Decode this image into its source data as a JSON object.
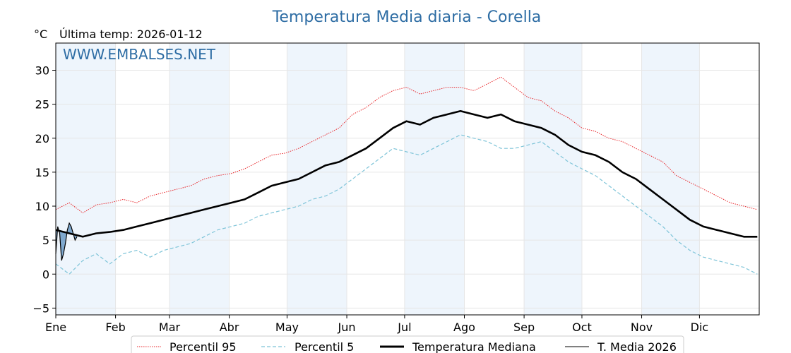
{
  "header": {
    "title": "Temperatura Media diaria - Corella",
    "unit": "°C",
    "last_temp": "Última temp: 2026-01-12",
    "watermark": "WWW.EMBALSES.NET"
  },
  "chart_data": {
    "type": "line",
    "title": "Temperatura Media diaria - Corella",
    "ylabel": "°C",
    "ylim": [
      -6,
      34
    ],
    "yticks": [
      -5,
      0,
      5,
      10,
      15,
      20,
      25,
      30
    ],
    "ytick_labels": [
      "−5",
      "0",
      "5",
      "10",
      "15",
      "20",
      "25",
      "30"
    ],
    "xlim": [
      0,
      365
    ],
    "months": [
      "Ene",
      "Feb",
      "Mar",
      "Abr",
      "May",
      "Jun",
      "Jul",
      "Ago",
      "Sep",
      "Oct",
      "Nov",
      "Dic"
    ],
    "month_starts": [
      0,
      31,
      59,
      90,
      120,
      151,
      181,
      212,
      243,
      273,
      304,
      334
    ],
    "grid": true,
    "alternate_month_shading": true,
    "legend_position": "bottom",
    "x_doy": [
      0,
      7,
      14,
      21,
      28,
      35,
      42,
      49,
      56,
      63,
      70,
      77,
      84,
      91,
      98,
      105,
      112,
      119,
      126,
      133,
      140,
      147,
      154,
      161,
      168,
      175,
      182,
      189,
      196,
      203,
      210,
      217,
      224,
      231,
      238,
      245,
      252,
      259,
      266,
      273,
      280,
      287,
      294,
      301,
      308,
      315,
      322,
      329,
      336,
      343,
      350,
      357,
      364
    ],
    "series": [
      {
        "name": "Percentil 95",
        "color": "#e8262a",
        "style": "dotted",
        "values": [
          9.5,
          10.5,
          9.0,
          10.2,
          10.5,
          11.0,
          10.5,
          11.5,
          12.0,
          12.5,
          13.0,
          14.0,
          14.5,
          14.8,
          15.5,
          16.5,
          17.5,
          17.8,
          18.5,
          19.5,
          20.5,
          21.5,
          23.5,
          24.5,
          26.0,
          27.0,
          27.5,
          26.5,
          27.0,
          27.5,
          27.5,
          27.0,
          28.0,
          29.0,
          27.5,
          26.0,
          25.5,
          24.0,
          23.0,
          21.5,
          21.0,
          20.0,
          19.5,
          18.5,
          17.5,
          16.5,
          14.5,
          13.5,
          12.5,
          11.5,
          10.5,
          10.0,
          9.5
        ]
      },
      {
        "name": "Percentil 5",
        "color": "#7ec4d8",
        "style": "dashed",
        "values": [
          1.5,
          0.0,
          2.0,
          3.0,
          1.5,
          3.0,
          3.5,
          2.5,
          3.5,
          4.0,
          4.5,
          5.5,
          6.5,
          7.0,
          7.5,
          8.5,
          9.0,
          9.5,
          10.0,
          11.0,
          11.5,
          12.5,
          14.0,
          15.5,
          17.0,
          18.5,
          18.0,
          17.5,
          18.5,
          19.5,
          20.5,
          20.0,
          19.5,
          18.5,
          18.5,
          19.0,
          19.5,
          18.0,
          16.5,
          15.5,
          14.5,
          13.0,
          11.5,
          10.0,
          8.5,
          7.0,
          5.0,
          3.5,
          2.5,
          2.0,
          1.5,
          1.0,
          0.0
        ]
      },
      {
        "name": "Temperatura Mediana",
        "color": "#000000",
        "style": "solid-thick",
        "values": [
          6.5,
          6.0,
          5.5,
          6.0,
          6.2,
          6.5,
          7.0,
          7.5,
          8.0,
          8.5,
          9.0,
          9.5,
          10.0,
          10.5,
          11.0,
          12.0,
          13.0,
          13.5,
          14.0,
          15.0,
          16.0,
          16.5,
          17.5,
          18.5,
          20.0,
          21.5,
          22.5,
          22.0,
          23.0,
          23.5,
          24.0,
          23.5,
          23.0,
          23.5,
          22.5,
          22.0,
          21.5,
          20.5,
          19.0,
          18.0,
          17.5,
          16.5,
          15.0,
          14.0,
          12.5,
          11.0,
          9.5,
          8.0,
          7.0,
          6.5,
          6.0,
          5.5,
          5.5
        ]
      }
    ],
    "current_year": {
      "name": "T. Media 2026",
      "color": "#000000",
      "fill_color": "#5a8fc0",
      "x_doy": [
        0,
        1,
        2,
        3,
        4,
        5,
        6,
        7,
        8,
        9,
        10,
        11
      ],
      "values": [
        3.0,
        7.0,
        6.0,
        2.0,
        3.0,
        4.5,
        6.5,
        7.5,
        7.0,
        6.0,
        5.0,
        5.5
      ],
      "median_ref": [
        6.5,
        6.4,
        6.3,
        6.2,
        6.1,
        6.0,
        6.0,
        6.0,
        5.9,
        5.9,
        5.8,
        5.8
      ]
    }
  }
}
